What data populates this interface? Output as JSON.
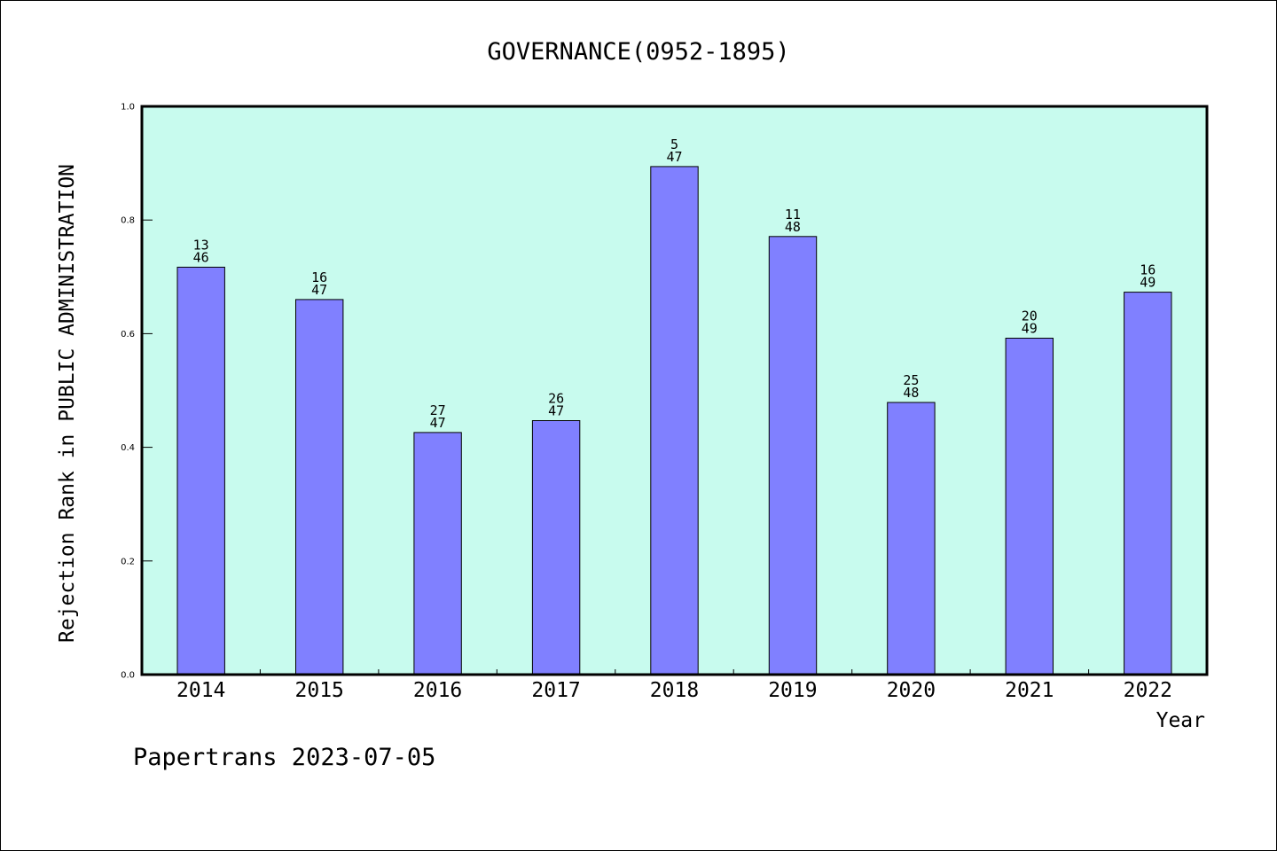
{
  "chart_data": {
    "type": "bar",
    "title": "GOVERNANCE(0952-1895)",
    "xlabel": "Year",
    "ylabel": "Rejection Rank in PUBLIC ADMINISTRATION",
    "categories": [
      "2014",
      "2015",
      "2016",
      "2017",
      "2018",
      "2019",
      "2020",
      "2021",
      "2022"
    ],
    "values": [
      0.717,
      0.66,
      0.426,
      0.447,
      0.894,
      0.771,
      0.479,
      0.592,
      0.673
    ],
    "bar_labels": [
      {
        "rank": "13",
        "total": "46"
      },
      {
        "rank": "16",
        "total": "47"
      },
      {
        "rank": "27",
        "total": "47"
      },
      {
        "rank": "26",
        "total": "47"
      },
      {
        "rank": "5",
        "total": "47"
      },
      {
        "rank": "11",
        "total": "48"
      },
      {
        "rank": "25",
        "total": "48"
      },
      {
        "rank": "20",
        "total": "49"
      },
      {
        "rank": "16",
        "total": "49"
      }
    ],
    "ylim": [
      0.0,
      1.0
    ],
    "yticks": [
      "0.0",
      "0.2",
      "0.4",
      "0.6",
      "0.8",
      "1.0"
    ],
    "grid": false,
    "colors": {
      "plot_background": "#c8fbee",
      "bar_fill": "#8080ff",
      "bar_stroke": "#000000"
    }
  },
  "footer": {
    "text": "Papertrans 2023-07-05"
  }
}
